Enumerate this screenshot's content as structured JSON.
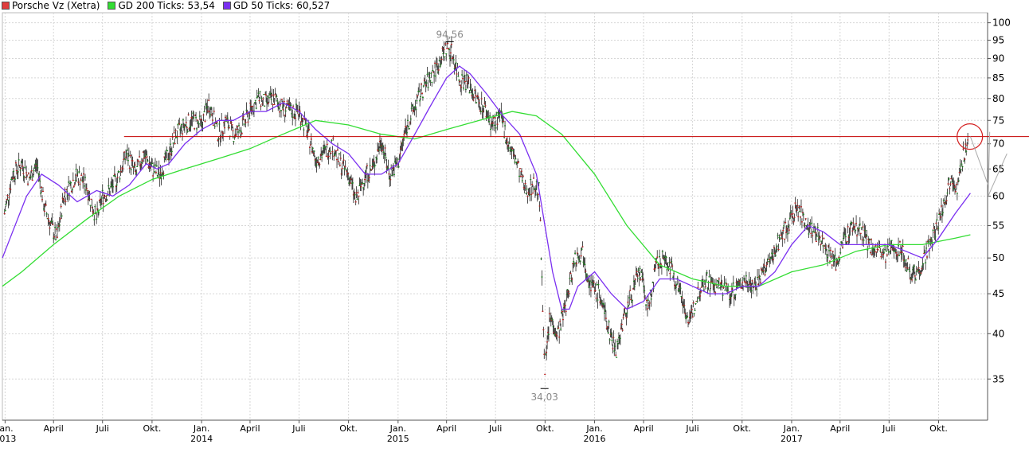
{
  "legend": [
    {
      "label": "Porsche Vz (Xetra)",
      "color": "#e03c3c"
    },
    {
      "label": "GD 200 Ticks: 53,54",
      "color": "#33dd33"
    },
    {
      "label": "GD 50 Ticks: 60,527",
      "color": "#7a2ff0"
    }
  ],
  "chart_data": {
    "type": "line",
    "title": "",
    "y_scale": "log",
    "ylim": [
      31,
      103
    ],
    "yticks": [
      35,
      40,
      45,
      50,
      55,
      60,
      65,
      70,
      75,
      80,
      85,
      90,
      95,
      100
    ],
    "xlim": [
      "2012-12-27",
      "2017-12-31"
    ],
    "month_ticks": [
      {
        "date": "2013-01-01",
        "label": "Jan.",
        "year": "2013"
      },
      {
        "date": "2013-04-01",
        "label": "April",
        "year": ""
      },
      {
        "date": "2013-07-01",
        "label": "Juli",
        "year": ""
      },
      {
        "date": "2013-10-01",
        "label": "Okt.",
        "year": ""
      },
      {
        "date": "2014-01-01",
        "label": "Jan.",
        "year": "2014"
      },
      {
        "date": "2014-04-01",
        "label": "April",
        "year": ""
      },
      {
        "date": "2014-07-01",
        "label": "Juli",
        "year": ""
      },
      {
        "date": "2014-10-01",
        "label": "Okt.",
        "year": ""
      },
      {
        "date": "2015-01-01",
        "label": "Jan.",
        "year": "2015"
      },
      {
        "date": "2015-04-01",
        "label": "April",
        "year": ""
      },
      {
        "date": "2015-07-01",
        "label": "Juli",
        "year": ""
      },
      {
        "date": "2015-10-01",
        "label": "Okt.",
        "year": ""
      },
      {
        "date": "2016-01-01",
        "label": "Jan.",
        "year": "2016"
      },
      {
        "date": "2016-04-01",
        "label": "April",
        "year": ""
      },
      {
        "date": "2016-07-01",
        "label": "Juli",
        "year": ""
      },
      {
        "date": "2016-10-01",
        "label": "Okt.",
        "year": ""
      },
      {
        "date": "2017-01-01",
        "label": "Jan.",
        "year": "2017"
      },
      {
        "date": "2017-04-01",
        "label": "April",
        "year": ""
      },
      {
        "date": "2017-07-01",
        "label": "Juli",
        "year": ""
      },
      {
        "date": "2017-10-01",
        "label": "Okt.",
        "year": ""
      }
    ],
    "series": [
      {
        "name": "Porsche Vz (Xetra)",
        "color": "#e03c3c",
        "style": "ohlc",
        "points": [
          [
            "2012-12-31",
            57
          ],
          [
            "2013-01-15",
            64
          ],
          [
            "2013-02-01",
            66
          ],
          [
            "2013-02-15",
            63
          ],
          [
            "2013-03-01",
            66
          ],
          [
            "2013-03-15",
            58
          ],
          [
            "2013-04-01",
            54
          ],
          [
            "2013-04-08",
            53
          ],
          [
            "2013-04-20",
            60
          ],
          [
            "2013-05-15",
            64
          ],
          [
            "2013-06-01",
            62
          ],
          [
            "2013-06-10",
            59
          ],
          [
            "2013-06-20",
            56
          ],
          [
            "2013-07-01",
            60
          ],
          [
            "2013-07-15",
            61
          ],
          [
            "2013-08-01",
            64
          ],
          [
            "2013-08-15",
            68
          ],
          [
            "2013-09-01",
            64
          ],
          [
            "2013-09-15",
            68
          ],
          [
            "2013-10-01",
            65
          ],
          [
            "2013-10-15",
            64
          ],
          [
            "2013-11-01",
            68
          ],
          [
            "2013-11-15",
            72
          ],
          [
            "2013-12-01",
            74
          ],
          [
            "2013-12-15",
            75
          ],
          [
            "2014-01-01",
            74
          ],
          [
            "2014-01-15",
            79
          ],
          [
            "2014-02-01",
            72
          ],
          [
            "2014-02-15",
            75
          ],
          [
            "2014-03-01",
            72
          ],
          [
            "2014-03-15",
            73
          ],
          [
            "2014-04-01",
            77
          ],
          [
            "2014-04-15",
            80
          ],
          [
            "2014-05-01",
            79
          ],
          [
            "2014-05-15",
            80
          ],
          [
            "2014-06-01",
            78
          ],
          [
            "2014-06-15",
            77
          ],
          [
            "2014-07-01",
            77
          ],
          [
            "2014-07-15",
            73
          ],
          [
            "2014-08-01",
            67
          ],
          [
            "2014-08-15",
            68
          ],
          [
            "2014-09-01",
            70
          ],
          [
            "2014-09-15",
            66
          ],
          [
            "2014-10-01",
            64
          ],
          [
            "2014-10-15",
            59
          ],
          [
            "2014-11-01",
            64
          ],
          [
            "2014-11-15",
            65
          ],
          [
            "2014-12-01",
            71
          ],
          [
            "2014-12-15",
            64
          ],
          [
            "2015-01-01",
            66
          ],
          [
            "2015-01-15",
            73
          ],
          [
            "2015-02-01",
            78
          ],
          [
            "2015-02-15",
            82
          ],
          [
            "2015-03-01",
            85
          ],
          [
            "2015-03-15",
            88
          ],
          [
            "2015-04-01",
            93
          ],
          [
            "2015-04-10",
            92
          ],
          [
            "2015-04-25",
            85
          ],
          [
            "2015-05-10",
            84
          ],
          [
            "2015-05-25",
            80
          ],
          [
            "2015-06-10",
            78
          ],
          [
            "2015-06-25",
            74
          ],
          [
            "2015-07-10",
            76
          ],
          [
            "2015-07-25",
            70
          ],
          [
            "2015-08-10",
            66
          ],
          [
            "2015-08-25",
            61
          ],
          [
            "2015-09-10",
            62
          ],
          [
            "2015-09-20",
            61
          ],
          [
            "2015-09-23",
            53
          ],
          [
            "2015-09-26",
            44
          ],
          [
            "2015-10-01",
            36
          ],
          [
            "2015-10-10",
            42
          ],
          [
            "2015-10-25",
            40
          ],
          [
            "2015-11-10",
            44
          ],
          [
            "2015-11-25",
            50
          ],
          [
            "2015-12-10",
            51
          ],
          [
            "2015-12-25",
            46
          ],
          [
            "2016-01-10",
            45
          ],
          [
            "2016-01-25",
            41
          ],
          [
            "2016-02-10",
            38
          ],
          [
            "2016-02-25",
            42
          ],
          [
            "2016-03-10",
            45
          ],
          [
            "2016-03-25",
            48
          ],
          [
            "2016-04-10",
            43
          ],
          [
            "2016-04-25",
            49
          ],
          [
            "2016-05-10",
            50
          ],
          [
            "2016-05-25",
            48
          ],
          [
            "2016-06-10",
            45
          ],
          [
            "2016-06-25",
            41
          ],
          [
            "2016-07-10",
            45
          ],
          [
            "2016-07-25",
            47
          ],
          [
            "2016-08-10",
            46
          ],
          [
            "2016-08-25",
            46
          ],
          [
            "2016-09-10",
            45
          ],
          [
            "2016-09-25",
            46
          ],
          [
            "2016-10-10",
            47
          ],
          [
            "2016-10-25",
            46
          ],
          [
            "2016-11-10",
            48
          ],
          [
            "2016-11-25",
            50
          ],
          [
            "2016-12-10",
            53
          ],
          [
            "2016-12-25",
            55
          ],
          [
            "2017-01-10",
            58
          ],
          [
            "2017-01-25",
            56
          ],
          [
            "2017-02-10",
            54
          ],
          [
            "2017-02-25",
            53
          ],
          [
            "2017-03-10",
            51
          ],
          [
            "2017-03-25",
            49
          ],
          [
            "2017-04-10",
            53
          ],
          [
            "2017-04-25",
            55
          ],
          [
            "2017-05-10",
            54
          ],
          [
            "2017-05-25",
            52
          ],
          [
            "2017-06-10",
            51
          ],
          [
            "2017-06-25",
            50
          ],
          [
            "2017-07-10",
            52
          ],
          [
            "2017-07-25",
            51
          ],
          [
            "2017-08-10",
            48
          ],
          [
            "2017-08-25",
            48
          ],
          [
            "2017-09-10",
            51
          ],
          [
            "2017-09-25",
            54
          ],
          [
            "2017-10-05",
            57
          ],
          [
            "2017-10-15",
            60
          ],
          [
            "2017-10-25",
            64
          ],
          [
            "2017-11-05",
            61
          ],
          [
            "2017-11-15",
            67
          ],
          [
            "2017-11-25",
            71
          ]
        ]
      },
      {
        "name": "GD 200 Ticks",
        "color": "#33dd33",
        "points": [
          [
            "2012-12-27",
            46
          ],
          [
            "2013-02-01",
            48
          ],
          [
            "2013-04-01",
            52
          ],
          [
            "2013-06-01",
            56
          ],
          [
            "2013-08-01",
            60
          ],
          [
            "2013-10-01",
            63
          ],
          [
            "2013-12-01",
            65
          ],
          [
            "2014-02-01",
            67
          ],
          [
            "2014-04-01",
            69
          ],
          [
            "2014-06-01",
            72
          ],
          [
            "2014-08-01",
            75
          ],
          [
            "2014-10-01",
            74
          ],
          [
            "2014-12-01",
            72
          ],
          [
            "2015-02-01",
            71
          ],
          [
            "2015-04-01",
            73
          ],
          [
            "2015-06-01",
            75
          ],
          [
            "2015-08-01",
            77
          ],
          [
            "2015-09-15",
            76
          ],
          [
            "2015-11-01",
            72
          ],
          [
            "2016-01-01",
            64
          ],
          [
            "2016-03-01",
            55
          ],
          [
            "2016-05-01",
            49
          ],
          [
            "2016-07-01",
            47
          ],
          [
            "2016-09-01",
            46
          ],
          [
            "2016-11-01",
            46
          ],
          [
            "2017-01-01",
            48
          ],
          [
            "2017-03-01",
            49
          ],
          [
            "2017-05-01",
            51
          ],
          [
            "2017-07-01",
            52
          ],
          [
            "2017-09-01",
            52
          ],
          [
            "2017-11-01",
            53
          ],
          [
            "2017-11-29",
            53.54
          ]
        ]
      },
      {
        "name": "GD 50 Ticks",
        "color": "#7a2ff0",
        "points": [
          [
            "2012-12-27",
            50
          ],
          [
            "2013-01-15",
            54
          ],
          [
            "2013-02-10",
            60
          ],
          [
            "2013-03-10",
            64
          ],
          [
            "2013-04-10",
            62
          ],
          [
            "2013-05-15",
            59
          ],
          [
            "2013-06-20",
            61
          ],
          [
            "2013-07-20",
            60
          ],
          [
            "2013-08-20",
            62
          ],
          [
            "2013-09-20",
            66
          ],
          [
            "2013-10-10",
            65
          ],
          [
            "2013-11-01",
            66
          ],
          [
            "2013-12-01",
            70
          ],
          [
            "2014-01-01",
            73
          ],
          [
            "2014-02-01",
            75
          ],
          [
            "2014-03-01",
            75
          ],
          [
            "2014-04-01",
            77
          ],
          [
            "2014-05-01",
            77
          ],
          [
            "2014-06-01",
            79
          ],
          [
            "2014-07-01",
            77
          ],
          [
            "2014-08-01",
            73
          ],
          [
            "2014-09-01",
            70
          ],
          [
            "2014-10-01",
            68
          ],
          [
            "2014-11-01",
            64
          ],
          [
            "2014-12-01",
            64
          ],
          [
            "2015-01-01",
            66
          ],
          [
            "2015-02-01",
            72
          ],
          [
            "2015-03-01",
            78
          ],
          [
            "2015-04-01",
            85
          ],
          [
            "2015-04-25",
            88
          ],
          [
            "2015-05-15",
            86
          ],
          [
            "2015-06-15",
            81
          ],
          [
            "2015-07-15",
            76
          ],
          [
            "2015-08-15",
            72
          ],
          [
            "2015-09-15",
            64
          ],
          [
            "2015-10-15",
            48
          ],
          [
            "2015-11-01",
            43
          ],
          [
            "2015-11-15",
            43
          ],
          [
            "2015-12-01",
            46
          ],
          [
            "2016-01-01",
            48
          ],
          [
            "2016-02-01",
            45
          ],
          [
            "2016-03-01",
            43
          ],
          [
            "2016-04-01",
            44
          ],
          [
            "2016-05-01",
            47
          ],
          [
            "2016-06-01",
            47
          ],
          [
            "2016-07-01",
            46
          ],
          [
            "2016-08-01",
            45
          ],
          [
            "2016-09-01",
            45
          ],
          [
            "2016-10-01",
            46
          ],
          [
            "2016-11-01",
            46
          ],
          [
            "2016-12-01",
            48
          ],
          [
            "2017-01-01",
            52
          ],
          [
            "2017-02-01",
            55
          ],
          [
            "2017-03-01",
            54
          ],
          [
            "2017-04-01",
            52
          ],
          [
            "2017-05-01",
            52
          ],
          [
            "2017-06-01",
            52
          ],
          [
            "2017-07-01",
            52
          ],
          [
            "2017-08-01",
            51
          ],
          [
            "2017-09-01",
            50
          ],
          [
            "2017-10-01",
            53
          ],
          [
            "2017-11-01",
            57
          ],
          [
            "2017-11-29",
            60.527
          ]
        ]
      }
    ],
    "annotations": [
      {
        "date": "2015-04-07",
        "value": 94.56,
        "label": "94,56",
        "position": "above"
      },
      {
        "date": "2015-09-30",
        "value": 34.03,
        "label": "34,03",
        "position": "below"
      }
    ],
    "horizontal_line": {
      "value": 71.5,
      "color": "#c40000"
    },
    "marker_circle": {
      "date": "2017-11-28",
      "value": 71.5,
      "color": "#d42020"
    },
    "projection_lines": {
      "color": "#aaaaaa",
      "vertices": [
        [
          "2017-11-29",
          71.5
        ],
        [
          "2018-01-01",
          62
        ],
        [
          "2018-01-04",
          72.5
        ],
        [
          "2018-01-01",
          60
        ],
        [
          "2018-02-05",
          68
        ]
      ]
    },
    "grid": true,
    "legend_position": "top-left"
  }
}
